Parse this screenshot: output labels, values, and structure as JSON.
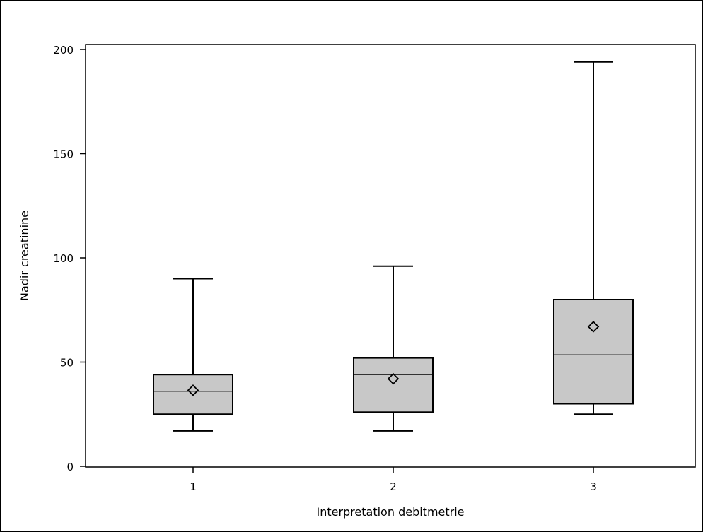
{
  "chart_data": {
    "type": "boxplot",
    "xlabel": "Interpretation debitmetrie",
    "ylabel": "Nadir creatinine",
    "ylim": [
      0,
      200
    ],
    "y_ticks": [
      0,
      50,
      100,
      150,
      200
    ],
    "categories": [
      "1",
      "2",
      "3"
    ],
    "boxes": [
      {
        "category": "1",
        "min": 17,
        "q1": 25,
        "median": 36,
        "q3": 44,
        "max": 90,
        "mean": 36.5
      },
      {
        "category": "2",
        "min": 17,
        "q1": 26,
        "median": 44,
        "q3": 52,
        "max": 96,
        "mean": 42
      },
      {
        "category": "3",
        "min": 25,
        "q1": 30,
        "median": 53.5,
        "q3": 80,
        "max": 194,
        "mean": 67
      }
    ],
    "box_fill": "#c8c8c8",
    "grid": false
  }
}
